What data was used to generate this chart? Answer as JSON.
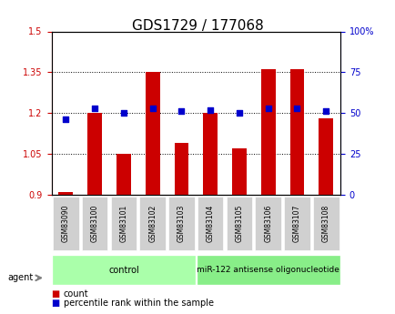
{
  "title": "GDS1729 / 177068",
  "samples": [
    "GSM83090",
    "GSM83100",
    "GSM83101",
    "GSM83102",
    "GSM83103",
    "GSM83104",
    "GSM83105",
    "GSM83106",
    "GSM83107",
    "GSM83108"
  ],
  "bar_values": [
    0.91,
    1.2,
    1.05,
    1.35,
    1.09,
    1.2,
    1.07,
    1.36,
    1.36,
    1.18
  ],
  "percentile_values": [
    46,
    53,
    50,
    53,
    51,
    52,
    50,
    53,
    53,
    51
  ],
  "bar_color": "#CC0000",
  "dot_color": "#0000CC",
  "ylim_left": [
    0.9,
    1.5
  ],
  "ylim_right": [
    0,
    100
  ],
  "yticks_left": [
    0.9,
    1.05,
    1.2,
    1.35,
    1.5
  ],
  "yticks_right": [
    0,
    25,
    50,
    75,
    100
  ],
  "ytick_labels_left": [
    "0.9",
    "1.05",
    "1.2",
    "1.35",
    "1.5"
  ],
  "ytick_labels_right": [
    "0",
    "25",
    "50",
    "75",
    "100%"
  ],
  "control_samples": [
    "GSM83090",
    "GSM83100",
    "GSM83101",
    "GSM83102",
    "GSM83103"
  ],
  "treatment_samples": [
    "GSM83104",
    "GSM83105",
    "GSM83106",
    "GSM83107",
    "GSM83108"
  ],
  "control_label": "control",
  "treatment_label": "miR-122 antisense oligonucleotide",
  "agent_label": "agent",
  "legend_count_label": "count",
  "legend_pct_label": "percentile rank within the sample",
  "bg_color": "#f0f0f0",
  "control_bg": "#ccffcc",
  "treatment_bg": "#99ff99",
  "bar_bottom": 0.9
}
